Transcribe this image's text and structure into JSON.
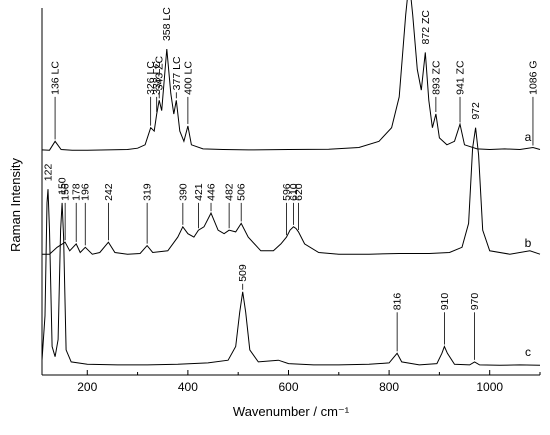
{
  "chart_data": {
    "type": "line",
    "xlabel": "Wavenumber / cm⁻¹",
    "ylabel": "Raman Intensity",
    "xlim": [
      110,
      1100
    ],
    "xticks": [
      200,
      400,
      600,
      800,
      1000
    ],
    "y_tick_labels": false,
    "grid": false,
    "series": [
      {
        "name": "a",
        "baseline": 0.63,
        "points": [
          [
            110,
            0.005
          ],
          [
            125,
            0.004
          ],
          [
            136,
            0.03
          ],
          [
            148,
            0.006
          ],
          [
            170,
            0.004
          ],
          [
            200,
            0.004
          ],
          [
            240,
            0.005
          ],
          [
            280,
            0.006
          ],
          [
            300,
            0.01
          ],
          [
            315,
            0.02
          ],
          [
            326,
            0.07
          ],
          [
            333,
            0.06
          ],
          [
            338,
            0.11
          ],
          [
            343,
            0.15
          ],
          [
            348,
            0.12
          ],
          [
            358,
            0.3
          ],
          [
            366,
            0.17
          ],
          [
            372,
            0.11
          ],
          [
            377,
            0.15
          ],
          [
            384,
            0.06
          ],
          [
            392,
            0.03
          ],
          [
            400,
            0.075
          ],
          [
            407,
            0.02
          ],
          [
            430,
            0.008
          ],
          [
            470,
            0.006
          ],
          [
            520,
            0.005
          ],
          [
            600,
            0.006
          ],
          [
            680,
            0.007
          ],
          [
            740,
            0.012
          ],
          [
            780,
            0.03
          ],
          [
            805,
            0.07
          ],
          [
            820,
            0.16
          ],
          [
            833,
            0.4
          ],
          [
            840,
            0.5
          ],
          [
            847,
            0.4
          ],
          [
            856,
            0.24
          ],
          [
            864,
            0.18
          ],
          [
            872,
            0.29
          ],
          [
            879,
            0.15
          ],
          [
            886,
            0.07
          ],
          [
            893,
            0.11
          ],
          [
            900,
            0.04
          ],
          [
            915,
            0.02
          ],
          [
            930,
            0.03
          ],
          [
            941,
            0.08
          ],
          [
            950,
            0.02
          ],
          [
            975,
            0.008
          ],
          [
            1000,
            0.006
          ],
          [
            1030,
            0.008
          ],
          [
            1060,
            0.006
          ],
          [
            1086,
            0.012
          ],
          [
            1100,
            0.006
          ]
        ],
        "peaks": [
          {
            "x": 136,
            "label": "136 LC"
          },
          {
            "x": 326,
            "label": "326 LC"
          },
          {
            "x": 338,
            "label": "338 LC"
          },
          {
            "x": 343,
            "label": "343 ZC"
          },
          {
            "x": 358,
            "label": "358 LC"
          },
          {
            "x": 377,
            "label": "377 LC"
          },
          {
            "x": 400,
            "label": "400 LC"
          },
          {
            "x": 840,
            "label": "840 LC"
          },
          {
            "x": 872,
            "label": "872 ZC"
          },
          {
            "x": 893,
            "label": "893 ZC"
          },
          {
            "x": 941,
            "label": "941 ZC"
          },
          {
            "x": 1086,
            "label": "1086 G"
          }
        ]
      },
      {
        "name": "b",
        "baseline": 0.32,
        "points": [
          [
            110,
            0.01
          ],
          [
            125,
            0.01
          ],
          [
            140,
            0.03
          ],
          [
            156,
            0.045
          ],
          [
            165,
            0.02
          ],
          [
            178,
            0.04
          ],
          [
            186,
            0.015
          ],
          [
            196,
            0.03
          ],
          [
            210,
            0.01
          ],
          [
            225,
            0.015
          ],
          [
            242,
            0.045
          ],
          [
            255,
            0.015
          ],
          [
            280,
            0.01
          ],
          [
            305,
            0.012
          ],
          [
            319,
            0.035
          ],
          [
            330,
            0.015
          ],
          [
            360,
            0.02
          ],
          [
            380,
            0.06
          ],
          [
            390,
            0.09
          ],
          [
            400,
            0.07
          ],
          [
            412,
            0.06
          ],
          [
            421,
            0.08
          ],
          [
            432,
            0.09
          ],
          [
            446,
            0.13
          ],
          [
            460,
            0.08
          ],
          [
            472,
            0.07
          ],
          [
            482,
            0.08
          ],
          [
            495,
            0.075
          ],
          [
            506,
            0.1
          ],
          [
            520,
            0.06
          ],
          [
            545,
            0.02
          ],
          [
            570,
            0.02
          ],
          [
            585,
            0.04
          ],
          [
            596,
            0.06
          ],
          [
            603,
            0.08
          ],
          [
            610,
            0.09
          ],
          [
            615,
            0.085
          ],
          [
            620,
            0.075
          ],
          [
            632,
            0.04
          ],
          [
            660,
            0.015
          ],
          [
            700,
            0.01
          ],
          [
            760,
            0.01
          ],
          [
            820,
            0.012
          ],
          [
            880,
            0.012
          ],
          [
            920,
            0.015
          ],
          [
            945,
            0.03
          ],
          [
            958,
            0.1
          ],
          [
            966,
            0.32
          ],
          [
            972,
            0.38
          ],
          [
            978,
            0.3
          ],
          [
            986,
            0.08
          ],
          [
            1000,
            0.02
          ],
          [
            1040,
            0.01
          ],
          [
            1080,
            0.02
          ],
          [
            1100,
            0.01
          ]
        ],
        "peaks": [
          {
            "x": 156,
            "label": "156"
          },
          {
            "x": 178,
            "label": "178"
          },
          {
            "x": 196,
            "label": "196"
          },
          {
            "x": 242,
            "label": "242"
          },
          {
            "x": 319,
            "label": "319"
          },
          {
            "x": 390,
            "label": "390"
          },
          {
            "x": 421,
            "label": "421"
          },
          {
            "x": 446,
            "label": "446"
          },
          {
            "x": 482,
            "label": "482"
          },
          {
            "x": 506,
            "label": "506"
          },
          {
            "x": 596,
            "label": "596"
          },
          {
            "x": 610,
            "label": "610"
          },
          {
            "x": 620,
            "label": "620"
          },
          {
            "x": 972,
            "label": "972"
          }
        ]
      },
      {
        "name": "c",
        "baseline": 0.0,
        "points": [
          [
            110,
            0.02
          ],
          [
            116,
            0.15
          ],
          [
            120,
            0.48
          ],
          [
            122,
            0.52
          ],
          [
            125,
            0.4
          ],
          [
            130,
            0.06
          ],
          [
            136,
            0.03
          ],
          [
            142,
            0.08
          ],
          [
            147,
            0.4
          ],
          [
            150,
            0.48
          ],
          [
            153,
            0.38
          ],
          [
            158,
            0.05
          ],
          [
            168,
            0.015
          ],
          [
            200,
            0.008
          ],
          [
            260,
            0.006
          ],
          [
            320,
            0.006
          ],
          [
            380,
            0.008
          ],
          [
            440,
            0.012
          ],
          [
            480,
            0.02
          ],
          [
            495,
            0.06
          ],
          [
            503,
            0.16
          ],
          [
            509,
            0.22
          ],
          [
            515,
            0.16
          ],
          [
            523,
            0.05
          ],
          [
            540,
            0.015
          ],
          [
            580,
            0.02
          ],
          [
            600,
            0.01
          ],
          [
            650,
            0.006
          ],
          [
            700,
            0.006
          ],
          [
            760,
            0.008
          ],
          [
            800,
            0.012
          ],
          [
            816,
            0.04
          ],
          [
            825,
            0.015
          ],
          [
            860,
            0.006
          ],
          [
            895,
            0.01
          ],
          [
            905,
            0.04
          ],
          [
            910,
            0.06
          ],
          [
            916,
            0.04
          ],
          [
            930,
            0.008
          ],
          [
            960,
            0.006
          ],
          [
            970,
            0.015
          ],
          [
            980,
            0.006
          ],
          [
            1020,
            0.005
          ],
          [
            1060,
            0.006
          ],
          [
            1100,
            0.005
          ]
        ],
        "peaks": [
          {
            "x": 122,
            "label": "122"
          },
          {
            "x": 150,
            "label": "150"
          },
          {
            "x": 509,
            "label": "509"
          },
          {
            "x": 816,
            "label": "816"
          },
          {
            "x": 910,
            "label": "910"
          },
          {
            "x": 970,
            "label": "970"
          }
        ]
      }
    ]
  }
}
